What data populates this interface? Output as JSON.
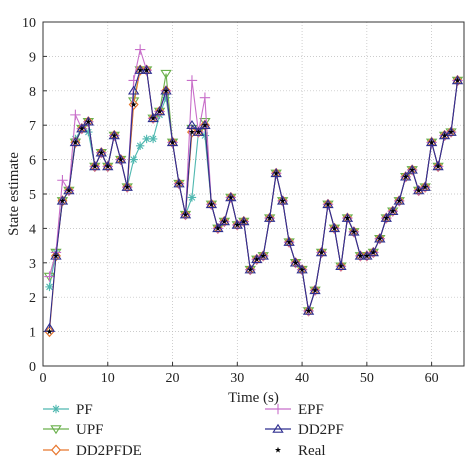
{
  "chart_data": {
    "type": "line",
    "xlabel": "Time (s)",
    "ylabel": "State estimate",
    "xlim": [
      0,
      65
    ],
    "ylim": [
      0,
      10
    ],
    "xticks": [
      0,
      10,
      20,
      30,
      40,
      50,
      60
    ],
    "yticks": [
      0,
      1,
      2,
      3,
      4,
      5,
      6,
      7,
      8,
      9,
      10
    ],
    "grid": true,
    "legend_position": "bottom",
    "x": [
      1,
      2,
      3,
      4,
      5,
      6,
      7,
      8,
      9,
      10,
      11,
      12,
      13,
      14,
      15,
      16,
      17,
      18,
      19,
      20,
      21,
      22,
      23,
      24,
      25,
      26,
      27,
      28,
      29,
      30,
      31,
      32,
      33,
      34,
      35,
      36,
      37,
      38,
      39,
      40,
      41,
      42,
      43,
      44,
      45,
      46,
      47,
      48,
      49,
      50,
      51,
      52,
      53,
      54,
      55,
      56,
      57,
      58,
      59,
      60,
      61,
      62,
      63,
      64
    ],
    "series": [
      {
        "name": "PF",
        "color": "#4fb8b0",
        "marker": "asterisk",
        "values": [
          2.3,
          3.3,
          4.8,
          5.1,
          6.6,
          6.9,
          6.8,
          5.8,
          6.2,
          5.8,
          6.7,
          6.0,
          5.2,
          6.0,
          6.4,
          6.6,
          6.6,
          7.3,
          7.8,
          6.5,
          5.3,
          4.4,
          4.9,
          6.8,
          6.7,
          4.7,
          4.0,
          4.2,
          4.9,
          4.1,
          4.2,
          2.8,
          3.1,
          3.2,
          4.3,
          5.6,
          4.8,
          3.6,
          3.0,
          2.8,
          1.6,
          2.2,
          3.3,
          4.7,
          4.0,
          2.9,
          4.3,
          3.9,
          3.2,
          3.2,
          3.3,
          3.7,
          4.3,
          4.5,
          4.8,
          5.5,
          5.7,
          5.1,
          5.2,
          6.5,
          5.8,
          6.7,
          6.8,
          8.3
        ]
      },
      {
        "name": "UPF",
        "color": "#6ab04c",
        "marker": "triangle-down",
        "values": [
          2.6,
          3.3,
          4.8,
          5.1,
          6.5,
          6.9,
          7.1,
          5.8,
          6.2,
          5.8,
          6.7,
          6.0,
          5.2,
          7.7,
          8.6,
          8.6,
          7.2,
          7.4,
          8.5,
          6.5,
          5.3,
          4.4,
          6.9,
          6.8,
          7.1,
          4.7,
          4.0,
          4.2,
          4.9,
          4.1,
          4.2,
          2.8,
          3.1,
          3.2,
          4.3,
          5.6,
          4.8,
          3.6,
          3.0,
          2.8,
          1.6,
          2.2,
          3.3,
          4.7,
          4.0,
          2.9,
          4.3,
          3.9,
          3.2,
          3.2,
          3.3,
          3.7,
          4.3,
          4.5,
          4.8,
          5.5,
          5.7,
          5.1,
          5.2,
          6.5,
          5.8,
          6.7,
          6.8,
          8.3
        ]
      },
      {
        "name": "DD2PFDE",
        "color": "#e8772e",
        "marker": "diamond",
        "values": [
          1.0,
          3.2,
          4.8,
          5.1,
          6.5,
          6.9,
          7.1,
          5.8,
          6.2,
          5.8,
          6.7,
          6.0,
          5.2,
          7.6,
          8.6,
          8.6,
          7.2,
          7.4,
          8.0,
          6.5,
          5.3,
          4.4,
          6.8,
          6.8,
          7.0,
          4.7,
          4.0,
          4.2,
          4.9,
          4.1,
          4.2,
          2.8,
          3.1,
          3.2,
          4.3,
          5.6,
          4.8,
          3.6,
          3.0,
          2.8,
          1.6,
          2.2,
          3.3,
          4.7,
          4.0,
          2.9,
          4.3,
          3.9,
          3.2,
          3.2,
          3.3,
          3.7,
          4.3,
          4.5,
          4.8,
          5.5,
          5.7,
          5.1,
          5.2,
          6.5,
          5.8,
          6.7,
          6.8,
          8.3
        ]
      },
      {
        "name": "EPF",
        "color": "#c86ec9",
        "marker": "plus",
        "values": [
          2.6,
          3.3,
          5.4,
          5.1,
          7.3,
          6.9,
          7.1,
          5.8,
          6.2,
          5.8,
          6.7,
          6.0,
          5.2,
          8.3,
          9.2,
          8.6,
          7.2,
          7.4,
          8.0,
          6.5,
          5.3,
          4.4,
          8.3,
          6.8,
          7.8,
          4.7,
          4.0,
          4.2,
          4.9,
          4.1,
          4.2,
          2.8,
          3.1,
          3.2,
          4.3,
          5.6,
          4.8,
          3.6,
          3.0,
          2.8,
          1.6,
          2.2,
          3.3,
          4.7,
          4.0,
          2.9,
          4.3,
          3.9,
          3.2,
          3.2,
          3.3,
          3.7,
          4.3,
          4.5,
          4.8,
          5.5,
          5.7,
          5.1,
          5.2,
          6.5,
          5.8,
          6.7,
          6.8,
          8.3
        ]
      },
      {
        "name": "DD2PF",
        "color": "#2e2e8f",
        "marker": "triangle-up",
        "values": [
          1.1,
          3.2,
          4.8,
          5.1,
          6.5,
          6.9,
          7.1,
          5.8,
          6.2,
          5.8,
          6.7,
          6.0,
          5.2,
          8.0,
          8.6,
          8.6,
          7.2,
          7.4,
          8.0,
          6.5,
          5.3,
          4.4,
          7.0,
          6.8,
          7.0,
          4.7,
          4.0,
          4.2,
          4.9,
          4.1,
          4.2,
          2.8,
          3.1,
          3.2,
          4.3,
          5.6,
          4.8,
          3.6,
          3.0,
          2.8,
          1.6,
          2.2,
          3.3,
          4.7,
          4.0,
          2.9,
          4.3,
          3.9,
          3.2,
          3.2,
          3.3,
          3.7,
          4.3,
          4.5,
          4.8,
          5.5,
          5.7,
          5.1,
          5.2,
          6.5,
          5.8,
          6.7,
          6.8,
          8.3
        ]
      },
      {
        "name": "Real",
        "color": "#000000",
        "marker": "star",
        "values": [
          1.0,
          3.2,
          4.8,
          5.1,
          6.5,
          6.9,
          7.1,
          5.8,
          6.2,
          5.8,
          6.7,
          6.0,
          5.2,
          7.6,
          8.6,
          8.6,
          7.2,
          7.4,
          8.0,
          6.5,
          5.3,
          4.4,
          6.8,
          6.8,
          7.0,
          4.7,
          4.0,
          4.2,
          4.9,
          4.1,
          4.2,
          2.8,
          3.1,
          3.2,
          4.3,
          5.6,
          4.8,
          3.6,
          3.0,
          2.8,
          1.6,
          2.2,
          3.3,
          4.7,
          4.0,
          2.9,
          4.3,
          3.9,
          3.2,
          3.2,
          3.3,
          3.7,
          4.3,
          4.5,
          4.8,
          5.5,
          5.7,
          5.1,
          5.2,
          6.5,
          5.8,
          6.7,
          6.8,
          8.3
        ]
      }
    ],
    "legend_order": [
      "PF",
      "EPF",
      "UPF",
      "DD2PF",
      "DD2PFDE",
      "Real"
    ]
  }
}
